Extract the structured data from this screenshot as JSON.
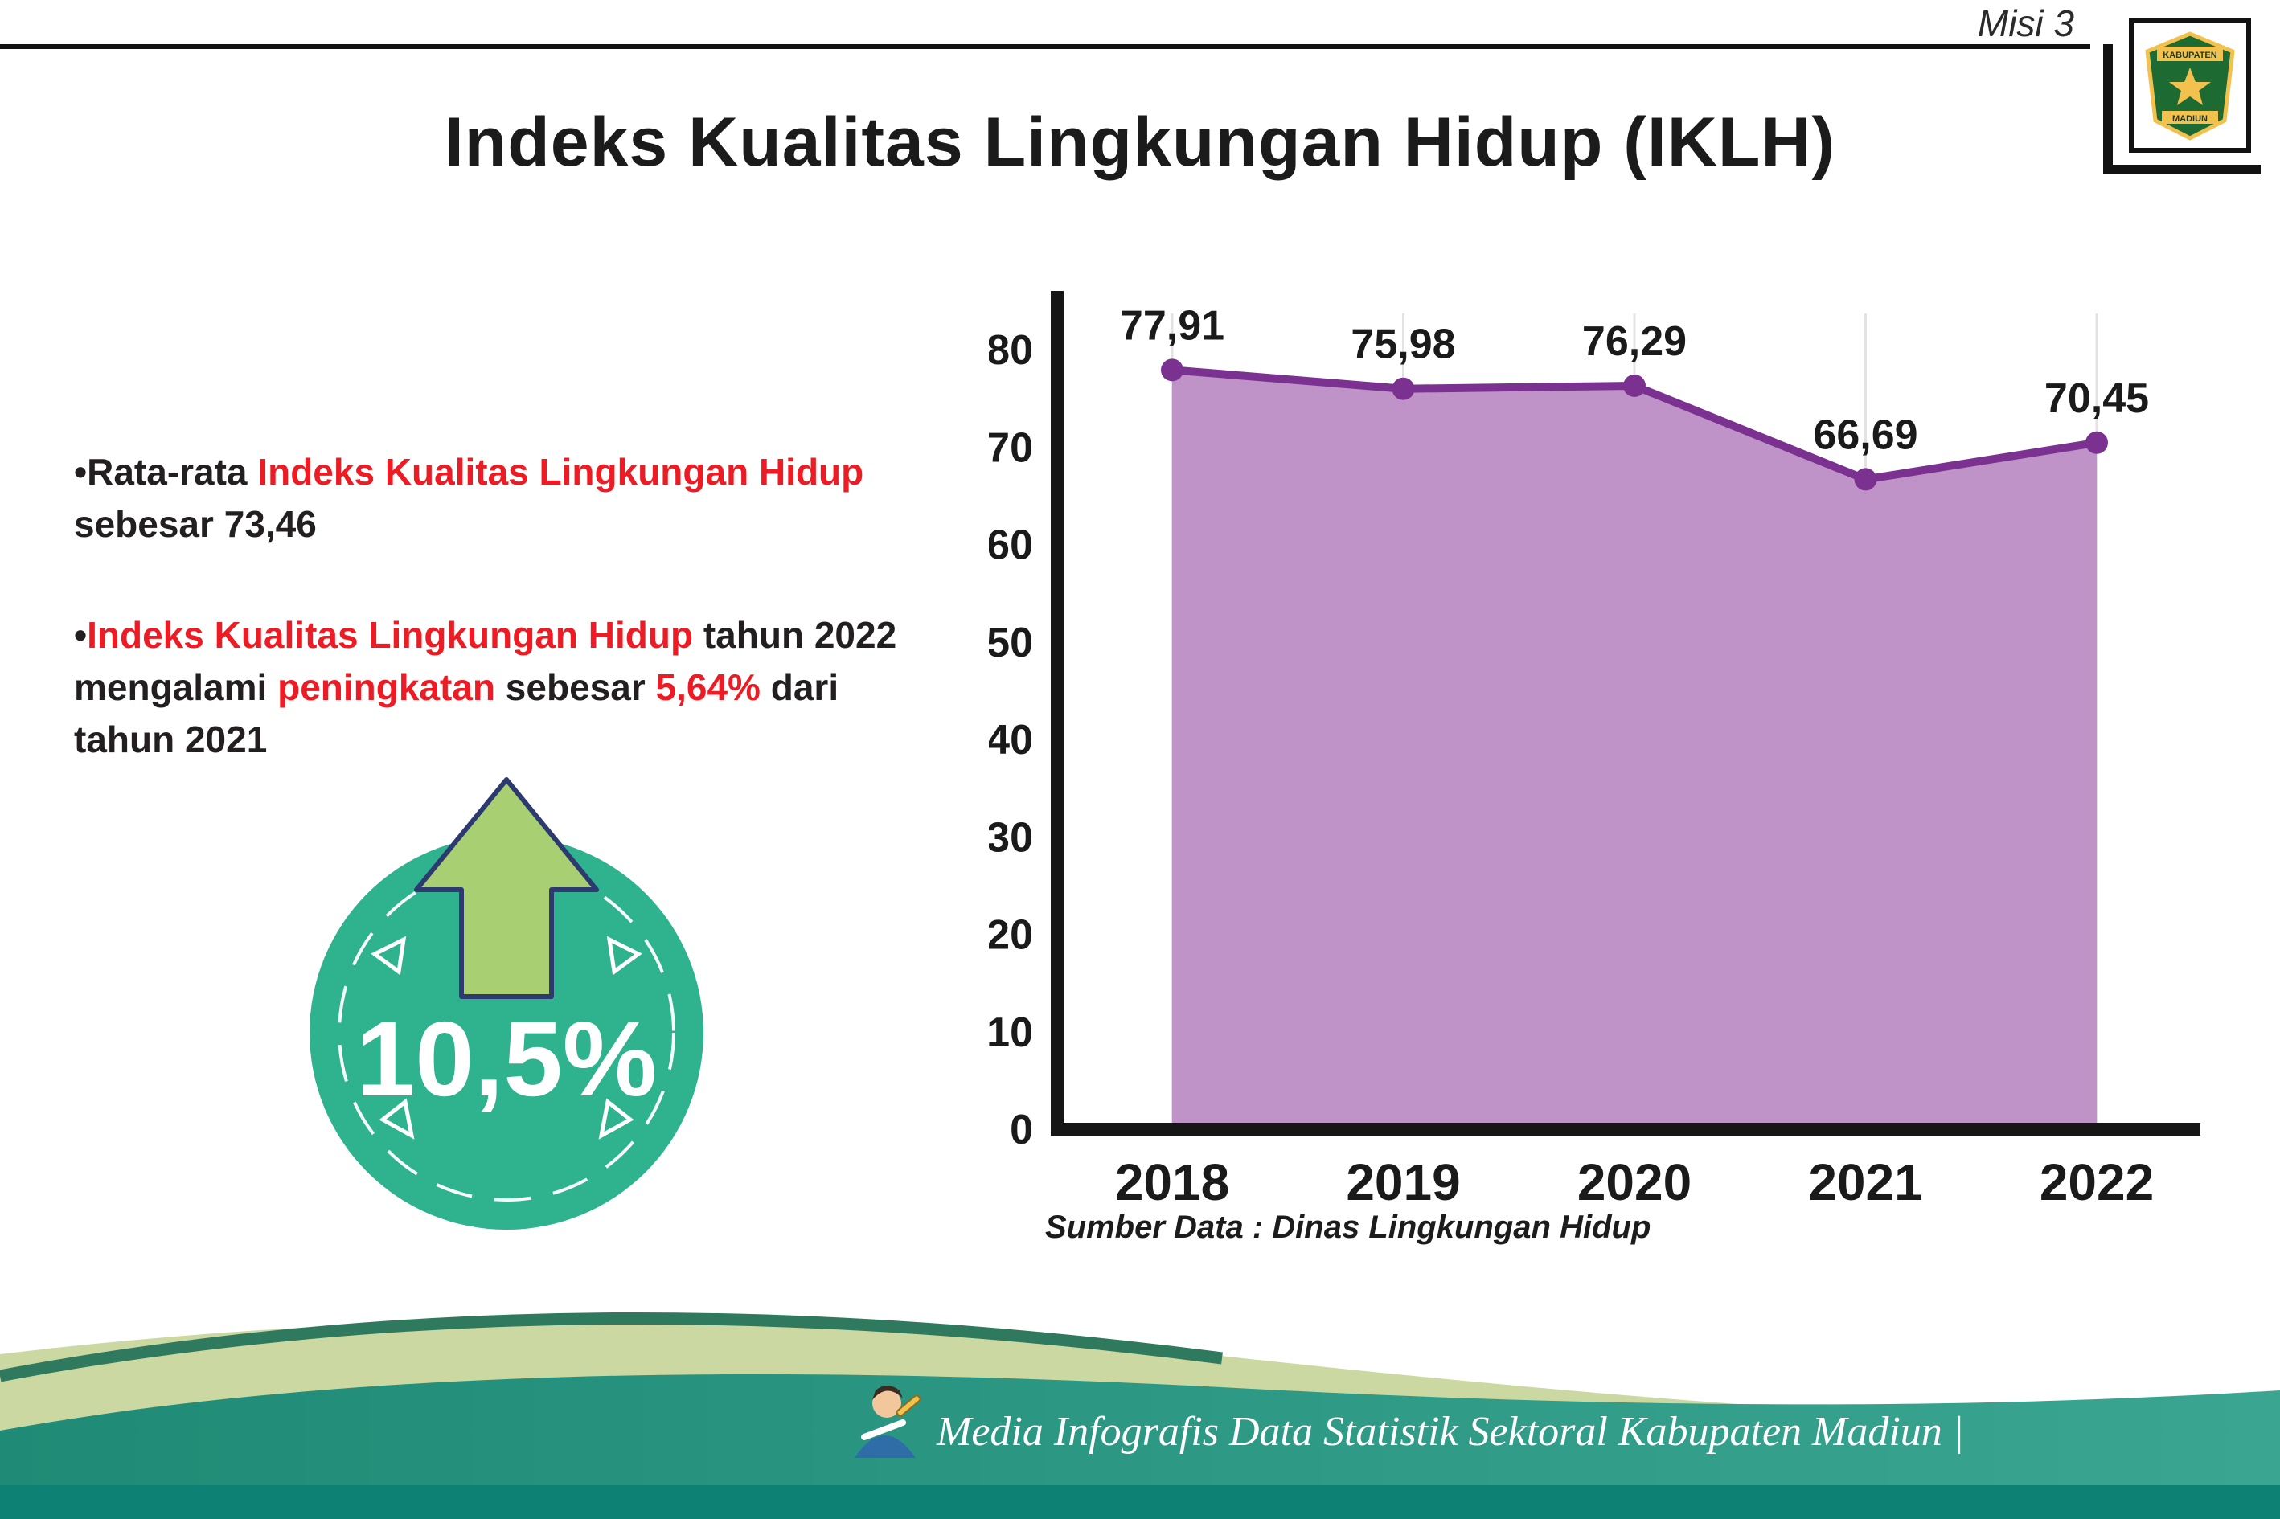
{
  "header": {
    "misi": "Misi 3",
    "title": "Indeks Kualitas Lingkungan Hidup (IKLH)",
    "logo": {
      "line1": "KABUPATEN",
      "line2": "MADIUN"
    }
  },
  "bullets": [
    {
      "segments": [
        {
          "text": "•",
          "color": "black"
        },
        {
          "text": "Rata-rata ",
          "color": "black"
        },
        {
          "text": "Indeks Kualitas Lingkungan Hidup",
          "color": "red"
        },
        {
          "text": " sebesar 73,46",
          "color": "black"
        }
      ]
    },
    {
      "segments": [
        {
          "text": "•",
          "color": "black"
        },
        {
          "text": "Indeks Kualitas Lingkungan Hidup",
          "color": "red"
        },
        {
          "text": " tahun 2022 mengalami ",
          "color": "black"
        },
        {
          "text": "peningkatan",
          "color": "red"
        },
        {
          "text": " sebesar ",
          "color": "black"
        },
        {
          "text": "5,64%",
          "color": "red"
        },
        {
          "text": " dari tahun 2021",
          "color": "black"
        }
      ]
    }
  ],
  "badge": {
    "value": "10,5%"
  },
  "chart_data": {
    "type": "area",
    "categories": [
      "2018",
      "2019",
      "2020",
      "2021",
      "2022"
    ],
    "values": [
      77.91,
      75.98,
      76.29,
      66.69,
      70.45
    ],
    "value_labels": [
      "77,91",
      "75,98",
      "76,29",
      "66,69",
      "70,45"
    ],
    "title": "",
    "xlabel": "",
    "ylabel": "",
    "ylim": [
      0,
      80
    ],
    "yticks": [
      0,
      10,
      20,
      30,
      40,
      50,
      60,
      70,
      80
    ],
    "grid": "vertical-light",
    "legend": "none",
    "line_color": "#7a3190",
    "fill_color": "#bf93c8",
    "source": "Sumber Data : Dinas Lingkungan Hidup"
  },
  "footer": {
    "text": "Media Infografis Data Statistik Sektoral Kabupaten Madiun |"
  },
  "colors": {
    "accent_red": "#ed1c24",
    "badge_teal": "#2fb28e",
    "arrow_green": "#a8cf72",
    "arrow_outline": "#2c3a70",
    "wave_pale": "#cbd8a2",
    "wave_dark_green": "#2f7a5e",
    "wave_teal": "#2c9a86",
    "footer_strip": "#0d8274"
  }
}
